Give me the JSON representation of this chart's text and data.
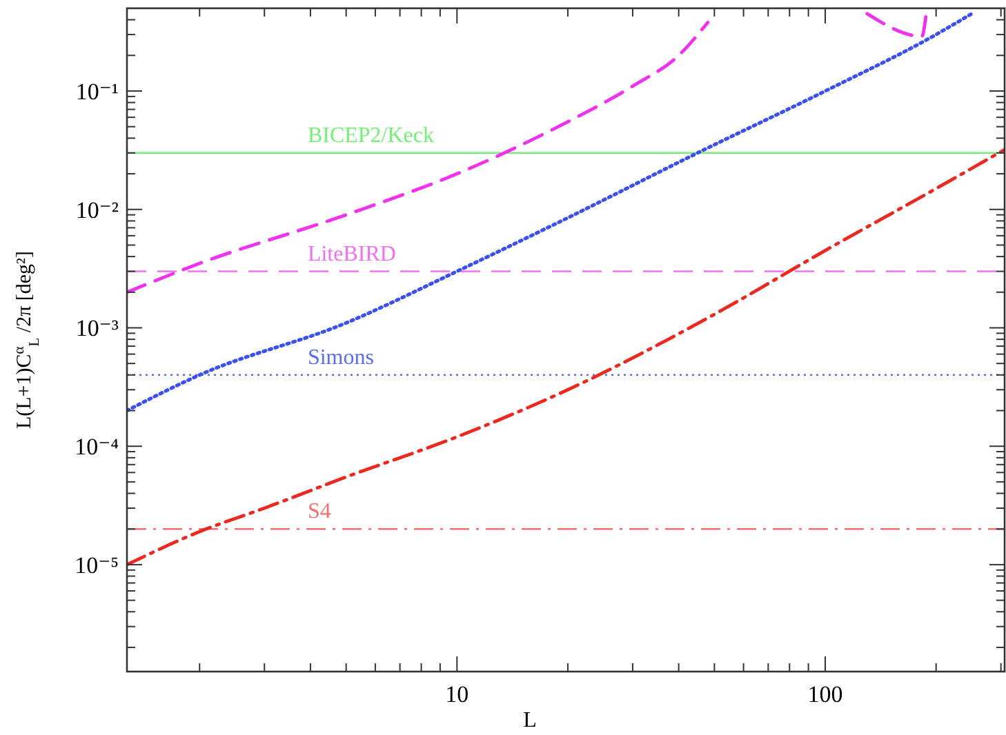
{
  "chart_data": {
    "type": "line",
    "xlabel": "L",
    "ylabel": "L(L+1)C$^{α}$$_{L}$ /2π [deg²]",
    "log": "xy",
    "xlim": [
      1.27,
      307
    ],
    "ylim": [
      1.25e-06,
      0.5
    ],
    "xticks": [
      {
        "value": 2,
        "label": null
      },
      {
        "value": 3,
        "label": null
      },
      {
        "value": 4,
        "label": null
      },
      {
        "value": 5,
        "label": null
      },
      {
        "value": 6,
        "label": null
      },
      {
        "value": 7,
        "label": null
      },
      {
        "value": 8,
        "label": null
      },
      {
        "value": 9,
        "label": null
      },
      10,
      {
        "value": 20,
        "label": null
      },
      {
        "value": 30,
        "label": null
      },
      {
        "value": 40,
        "label": null
      },
      {
        "value": 50,
        "label": null
      },
      {
        "value": 60,
        "label": null
      },
      {
        "value": 70,
        "label": null
      },
      {
        "value": 80,
        "label": null
      },
      {
        "value": 90,
        "label": null
      },
      100,
      {
        "value": 200,
        "label": null
      },
      {
        "value": 300,
        "label": null
      }
    ],
    "yticks": [
      {
        "value": 2e-06,
        "label": null
      },
      {
        "value": 3e-06,
        "label": null
      },
      {
        "value": 4e-06,
        "label": null
      },
      {
        "value": 5e-06,
        "label": null
      },
      {
        "value": 6e-06,
        "label": null
      },
      {
        "value": 7e-06,
        "label": null
      },
      {
        "value": 8e-06,
        "label": null
      },
      {
        "value": 9e-06,
        "label": null
      },
      {
        "value": 1e-05,
        "label": "10⁻⁵"
      },
      {
        "value": 2e-05,
        "label": null
      },
      {
        "value": 3e-05,
        "label": null
      },
      {
        "value": 4e-05,
        "label": null
      },
      {
        "value": 5e-05,
        "label": null
      },
      {
        "value": 6e-05,
        "label": null
      },
      {
        "value": 7e-05,
        "label": null
      },
      {
        "value": 8e-05,
        "label": null
      },
      {
        "value": 9e-05,
        "label": null
      },
      {
        "value": 0.0001,
        "label": "10⁻⁴"
      },
      {
        "value": 0.0002,
        "label": null
      },
      {
        "value": 0.0003,
        "label": null
      },
      {
        "value": 0.0004,
        "label": null
      },
      {
        "value": 0.0005,
        "label": null
      },
      {
        "value": 0.0006,
        "label": null
      },
      {
        "value": 0.0007,
        "label": null
      },
      {
        "value": 0.0008,
        "label": null
      },
      {
        "value": 0.0009,
        "label": null
      },
      {
        "value": 0.001,
        "label": "10⁻³"
      },
      {
        "value": 0.002,
        "label": null
      },
      {
        "value": 0.003,
        "label": null
      },
      {
        "value": 0.004,
        "label": null
      },
      {
        "value": 0.005,
        "label": null
      },
      {
        "value": 0.006,
        "label": null
      },
      {
        "value": 0.007,
        "label": null
      },
      {
        "value": 0.008,
        "label": null
      },
      {
        "value": 0.009,
        "label": null
      },
      {
        "value": 0.01,
        "label": "10⁻²"
      },
      {
        "value": 0.02,
        "label": null
      },
      {
        "value": 0.03,
        "label": null
      },
      {
        "value": 0.04,
        "label": null
      },
      {
        "value": 0.05,
        "label": null
      },
      {
        "value": 0.06,
        "label": null
      },
      {
        "value": 0.07,
        "label": null
      },
      {
        "value": 0.08,
        "label": null
      },
      {
        "value": 0.09,
        "label": null
      },
      {
        "value": 0.1,
        "label": "10⁻¹"
      },
      {
        "value": 0.2,
        "label": null
      },
      {
        "value": 0.3,
        "label": null
      },
      {
        "value": 0.4,
        "label": null
      }
    ],
    "series": [
      {
        "color": "#f032f0",
        "line_style": "dashed",
        "x": [
          1.27,
          2,
          5,
          10,
          20,
          30,
          40,
          48,
          80,
          130,
          183,
          188
        ],
        "values": [
          0.002,
          0.0035,
          0.009,
          0.02,
          0.055,
          0.11,
          0.2,
          0.38,
          null,
          0.45,
          0.29,
          0.45
        ]
      },
      {
        "color": "#3a50f0",
        "line_style": "dotted",
        "x": [
          1.27,
          2,
          5,
          10,
          20,
          45,
          100,
          200,
          250
        ],
        "values": [
          0.0002,
          0.0004,
          0.0011,
          0.003,
          0.0085,
          0.03,
          0.1,
          0.3,
          0.45
        ]
      },
      {
        "color": "#e82a20",
        "line_style": "dashdot",
        "x": [
          1.27,
          2,
          3,
          5,
          10,
          20,
          50,
          100,
          200,
          307
        ],
        "values": [
          1e-05,
          1.9e-05,
          3e-05,
          5.5e-05,
          0.00012,
          0.0003,
          0.0013,
          0.0045,
          0.015,
          0.032
        ]
      }
    ],
    "ref_lines": [
      {
        "axis": "y",
        "value": 0.03,
        "label": "BICEP2/Keck",
        "color": "#77ee77",
        "line_style": "solid"
      },
      {
        "axis": "y",
        "value": 0.003,
        "label": "LiteBIRD",
        "color": "#f070f0",
        "line_style": "dashed"
      },
      {
        "axis": "y",
        "value": 0.0004,
        "label": "Simons",
        "color": "#5a6ef0",
        "line_style": "dotted"
      },
      {
        "axis": "y",
        "value": 2e-05,
        "label": "S4",
        "color": "#f07070",
        "line_style": "dashdot"
      }
    ]
  }
}
